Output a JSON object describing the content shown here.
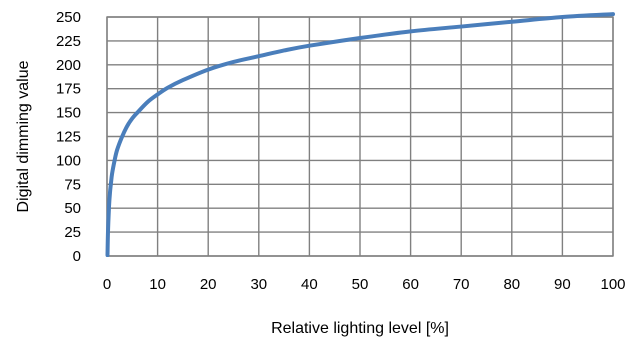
{
  "chart_data": {
    "type": "line",
    "title": "",
    "xlabel": "Relative lighting level [%]",
    "ylabel": "Digital dimming value",
    "xlim": [
      0,
      100
    ],
    "ylim": [
      0,
      250
    ],
    "xticks": [
      "0",
      "10",
      "20",
      "30",
      "40",
      "50",
      "60",
      "70",
      "80",
      "90",
      "100"
    ],
    "yticks": [
      "0",
      "25",
      "50",
      "75",
      "100",
      "125",
      "150",
      "175",
      "200",
      "225",
      "250"
    ],
    "grid": true,
    "series": [
      {
        "color": "#4a7ebb",
        "x": [
          0.1,
          0.2,
          0.4,
          0.6,
          0.8,
          1,
          1.5,
          2,
          3,
          4,
          5,
          6,
          8,
          10,
          12,
          15,
          20,
          25,
          30,
          35,
          40,
          50,
          60,
          70,
          80,
          90,
          100
        ],
        "y": [
          1,
          26,
          52,
          67,
          77,
          86,
          100,
          111,
          125,
          136,
          144,
          150,
          161,
          169,
          176,
          184,
          195,
          203,
          209,
          215,
          220,
          228,
          235,
          240,
          245,
          250,
          253
        ]
      }
    ]
  }
}
